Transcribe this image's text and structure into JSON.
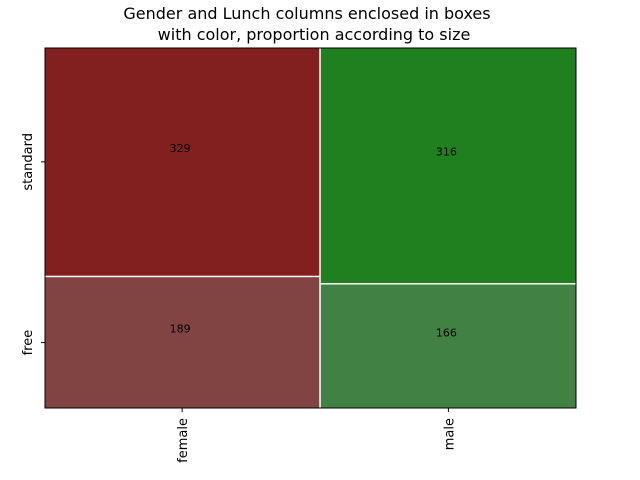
{
  "chart_data": {
    "type": "mosaic",
    "title_lines": [
      "Gender and Lunch columns enclosed in boxes",
      "with color, proportion according to size"
    ],
    "categories": [
      "female",
      "male"
    ],
    "segments": [
      "free",
      "standard"
    ],
    "values": {
      "female": {
        "free": 189,
        "standard": 329
      },
      "male": {
        "free": 166,
        "standard": 316
      }
    },
    "colors": {
      "female": {
        "free": "#824442",
        "standard": "#822020"
      },
      "male": {
        "free": "#418244",
        "standard": "#208020"
      }
    },
    "grid": false
  }
}
